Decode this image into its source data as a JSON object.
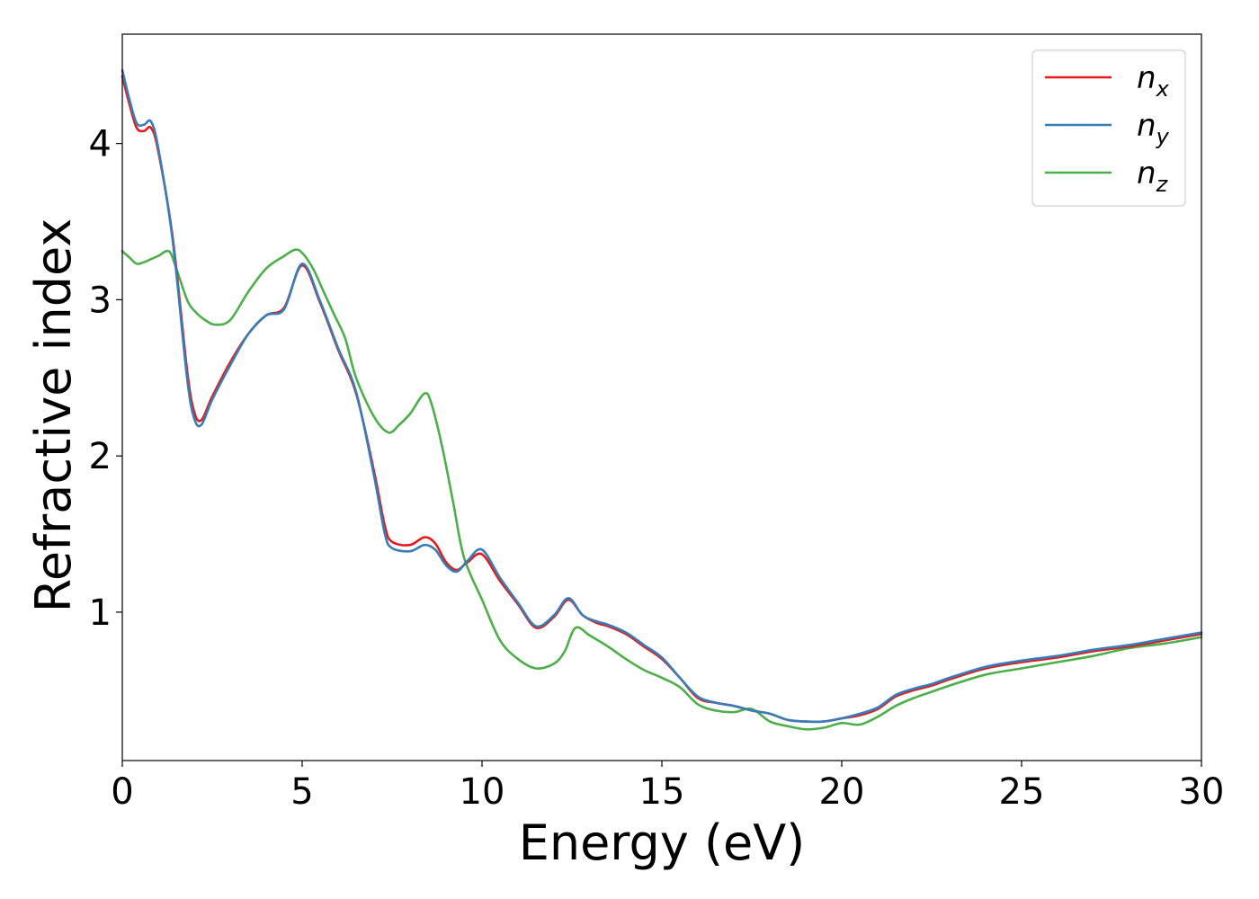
{
  "chart_data": {
    "type": "line",
    "xlabel": "Energy (eV)",
    "ylabel": "Refractive index",
    "xlim": [
      0,
      30
    ],
    "ylim": [
      0.05,
      4.7
    ],
    "xticks": [
      0,
      5,
      10,
      15,
      20,
      25,
      30
    ],
    "xtick_labels": [
      "0",
      "5",
      "10",
      "15",
      "20",
      "25",
      "30"
    ],
    "yticks": [
      1,
      2,
      3,
      4
    ],
    "ytick_labels": [
      "1",
      "2",
      "3",
      "4"
    ],
    "grid": false,
    "legend_position": "top-right",
    "series": [
      {
        "name": "n",
        "subscript": "x",
        "color": "#e41a1c",
        "x": [
          0,
          0.2,
          0.4,
          0.6,
          0.8,
          1.0,
          1.4,
          1.8,
          2.0,
          2.2,
          2.5,
          3.0,
          3.5,
          4.0,
          4.5,
          5.0,
          5.5,
          6.0,
          6.5,
          7.0,
          7.3,
          7.5,
          8.0,
          8.4,
          8.7,
          9.0,
          9.3,
          9.6,
          10.0,
          10.5,
          11.0,
          11.5,
          12.0,
          12.4,
          12.8,
          13.2,
          13.5,
          14.0,
          14.5,
          15.0,
          15.5,
          16.0,
          16.5,
          17.0,
          17.5,
          18.0,
          18.5,
          19.0,
          19.5,
          20.0,
          20.5,
          21.0,
          21.5,
          22.0,
          22.5,
          23.0,
          24.0,
          25.0,
          26.0,
          27.0,
          28.0,
          29.0,
          30.0
        ],
        "y": [
          4.43,
          4.25,
          4.1,
          4.08,
          4.1,
          3.95,
          3.4,
          2.55,
          2.28,
          2.23,
          2.38,
          2.6,
          2.78,
          2.9,
          2.95,
          3.22,
          2.98,
          2.68,
          2.4,
          1.9,
          1.55,
          1.45,
          1.43,
          1.48,
          1.44,
          1.32,
          1.27,
          1.32,
          1.37,
          1.2,
          1.05,
          0.9,
          0.97,
          1.08,
          0.98,
          0.93,
          0.91,
          0.86,
          0.78,
          0.7,
          0.58,
          0.45,
          0.42,
          0.4,
          0.37,
          0.35,
          0.31,
          0.3,
          0.3,
          0.32,
          0.34,
          0.38,
          0.46,
          0.5,
          0.53,
          0.57,
          0.64,
          0.68,
          0.71,
          0.75,
          0.78,
          0.82,
          0.86
        ]
      },
      {
        "name": "n",
        "subscript": "y",
        "color": "#377eb8",
        "x": [
          0,
          0.2,
          0.4,
          0.6,
          0.8,
          1.0,
          1.4,
          1.8,
          2.0,
          2.2,
          2.5,
          3.0,
          3.5,
          4.0,
          4.5,
          5.0,
          5.5,
          6.0,
          6.5,
          7.0,
          7.3,
          7.5,
          8.0,
          8.4,
          8.7,
          9.0,
          9.3,
          9.6,
          10.0,
          10.5,
          11.0,
          11.5,
          12.0,
          12.4,
          12.8,
          13.2,
          13.5,
          14.0,
          14.5,
          15.0,
          15.5,
          16.0,
          16.5,
          17.0,
          17.5,
          18.0,
          18.5,
          19.0,
          19.5,
          20.0,
          20.5,
          21.0,
          21.5,
          22.0,
          22.5,
          23.0,
          24.0,
          25.0,
          26.0,
          27.0,
          28.0,
          29.0,
          30.0
        ],
        "y": [
          4.47,
          4.28,
          4.13,
          4.12,
          4.14,
          3.97,
          3.38,
          2.5,
          2.24,
          2.2,
          2.36,
          2.58,
          2.78,
          2.9,
          2.94,
          3.23,
          2.99,
          2.69,
          2.41,
          1.87,
          1.5,
          1.41,
          1.39,
          1.43,
          1.4,
          1.3,
          1.26,
          1.33,
          1.4,
          1.22,
          1.06,
          0.91,
          0.98,
          1.09,
          0.98,
          0.94,
          0.92,
          0.87,
          0.79,
          0.71,
          0.58,
          0.46,
          0.42,
          0.4,
          0.37,
          0.35,
          0.31,
          0.3,
          0.3,
          0.32,
          0.35,
          0.39,
          0.47,
          0.51,
          0.54,
          0.58,
          0.65,
          0.69,
          0.72,
          0.76,
          0.79,
          0.83,
          0.87
        ]
      },
      {
        "name": "n",
        "subscript": "z",
        "color": "#4daf4a",
        "x": [
          0,
          0.2,
          0.4,
          0.6,
          0.8,
          1.0,
          1.3,
          1.5,
          1.8,
          2.0,
          2.3,
          2.6,
          3.0,
          3.5,
          4.0,
          4.5,
          4.8,
          5.0,
          5.3,
          5.6,
          5.9,
          6.2,
          6.5,
          7.0,
          7.4,
          7.7,
          8.0,
          8.4,
          8.6,
          8.9,
          9.2,
          9.5,
          10.0,
          10.5,
          11.0,
          11.5,
          12.0,
          12.3,
          12.6,
          13.0,
          13.5,
          14.0,
          14.5,
          15.0,
          15.5,
          16.0,
          16.5,
          17.0,
          17.5,
          18.0,
          18.5,
          19.0,
          19.5,
          20.0,
          20.5,
          21.0,
          21.5,
          22.0,
          22.5,
          23.0,
          24.0,
          25.0,
          26.0,
          27.0,
          28.0,
          29.0,
          30.0
        ],
        "y": [
          3.31,
          3.27,
          3.23,
          3.24,
          3.26,
          3.28,
          3.31,
          3.2,
          3.0,
          2.93,
          2.87,
          2.84,
          2.87,
          3.05,
          3.2,
          3.28,
          3.32,
          3.3,
          3.2,
          3.05,
          2.9,
          2.75,
          2.5,
          2.25,
          2.15,
          2.2,
          2.27,
          2.4,
          2.33,
          2.05,
          1.7,
          1.35,
          1.08,
          0.82,
          0.7,
          0.64,
          0.67,
          0.75,
          0.9,
          0.85,
          0.78,
          0.7,
          0.63,
          0.58,
          0.52,
          0.41,
          0.37,
          0.36,
          0.38,
          0.3,
          0.27,
          0.25,
          0.26,
          0.29,
          0.28,
          0.33,
          0.4,
          0.45,
          0.49,
          0.53,
          0.6,
          0.64,
          0.68,
          0.72,
          0.77,
          0.8,
          0.84
        ]
      }
    ]
  }
}
